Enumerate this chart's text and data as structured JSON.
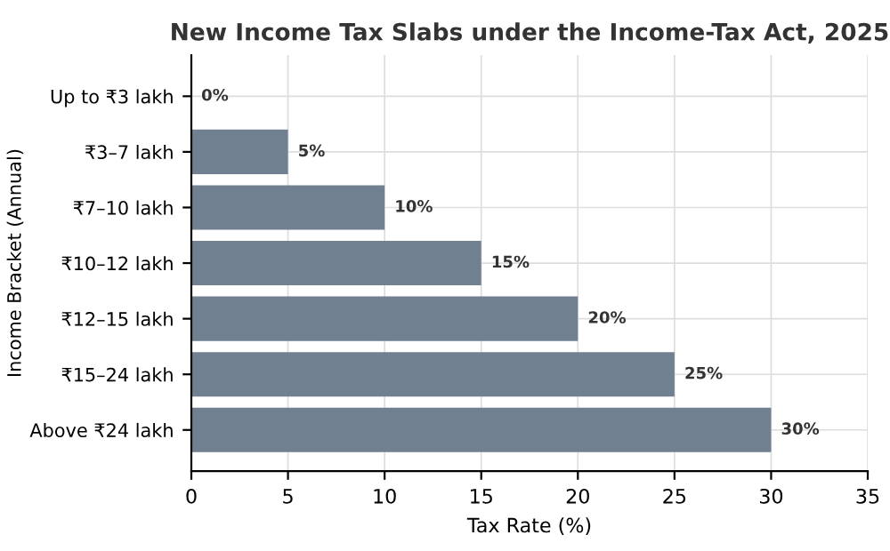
{
  "chart_data": {
    "type": "bar",
    "orientation": "horizontal",
    "title": "New Income Tax Slabs under the Income-Tax Act, 2025",
    "xlabel": "Tax Rate (%)",
    "ylabel": "Income Bracket (Annual)",
    "categories": [
      "Up to ₹3 lakh",
      "₹3–7 lakh",
      "₹7–10 lakh",
      "₹10–12 lakh",
      "₹12–15 lakh",
      "₹15–24 lakh",
      "Above ₹24 lakh"
    ],
    "values": [
      0,
      5,
      10,
      15,
      20,
      25,
      30
    ],
    "color": "#708090",
    "value_labels": [
      "0%",
      "5%",
      "10%",
      "15%",
      "20%",
      "25%",
      "30%"
    ],
    "xlim": [
      0,
      35
    ],
    "xticks": [
      0,
      5,
      10,
      15,
      20,
      25,
      30,
      35
    ],
    "grid": true,
    "legend": false
  }
}
